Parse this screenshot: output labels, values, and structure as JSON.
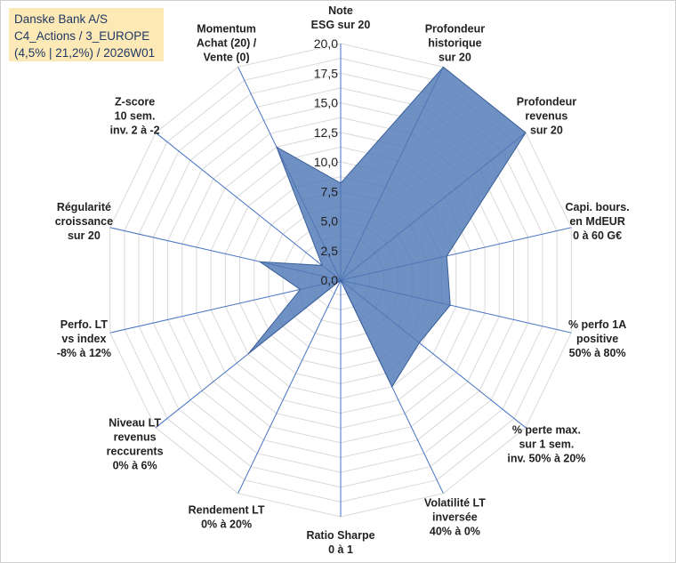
{
  "info_box": {
    "line1": "Danske Bank A/S",
    "line2": "C4_Actions / 3_EUROPE",
    "line3": "(4,5% | 21,2%) / 2026W01"
  },
  "colors": {
    "fill": "#4f77b5",
    "stroke": "#3a5f99",
    "grid": "#d9d9d9",
    "axis": "#4472c4",
    "info_bg": "#fde9b5",
    "info_text": "#1f3864"
  },
  "chart_data": {
    "type": "radar",
    "title": "",
    "rmin": 0,
    "rmax": 20,
    "ticks": [
      "0,0",
      "2,5",
      "5,0",
      "7,5",
      "10,0",
      "12,5",
      "15,0",
      "17,5",
      "20,0"
    ],
    "grid": true,
    "axes": [
      {
        "label": [
          "Note",
          "ESG sur 20"
        ],
        "value": 8.2
      },
      {
        "label": [
          "Profondeur",
          "historique",
          "sur 20"
        ],
        "value": 20.0
      },
      {
        "label": [
          "Profondeur",
          "revenus",
          "sur 20"
        ],
        "value": 20.0
      },
      {
        "label": [
          "Capi. bours.",
          "en MdEUR",
          "0 à 60 G€"
        ],
        "value": 9.2
      },
      {
        "label": [
          "% perfo 1A",
          "positive",
          "50% à 80%"
        ],
        "value": 9.5
      },
      {
        "label": [
          "% perte max.",
          "sur 1 sem.",
          "inv. 50% à 20%"
        ],
        "value": 8.5
      },
      {
        "label": [
          "Volatilité LT",
          "inversée",
          "40% à 0%"
        ],
        "value": 10.0
      },
      {
        "label": [
          "Ratio Sharpe",
          "0 à 1"
        ],
        "value": 0.0
      },
      {
        "label": [
          "Rendement LT",
          "0% à 20%"
        ],
        "value": 0.0
      },
      {
        "label": [
          "Niveau LT",
          "revenus",
          "reccurents",
          "0% à 6%"
        ],
        "value": 10.0
      },
      {
        "label": [
          "Perfo. LT",
          "vs index",
          "-8% à 12%"
        ],
        "value": 3.5
      },
      {
        "label": [
          "Régularité",
          "croissance",
          "sur 20"
        ],
        "value": 7.0
      },
      {
        "label": [
          "Z-score",
          "10 sem.",
          "inv. 2 à -2"
        ],
        "value": 2.0
      },
      {
        "label": [
          "Momentum",
          "Achat (20) /",
          "Vente (0)"
        ],
        "value": 12.5
      }
    ]
  }
}
